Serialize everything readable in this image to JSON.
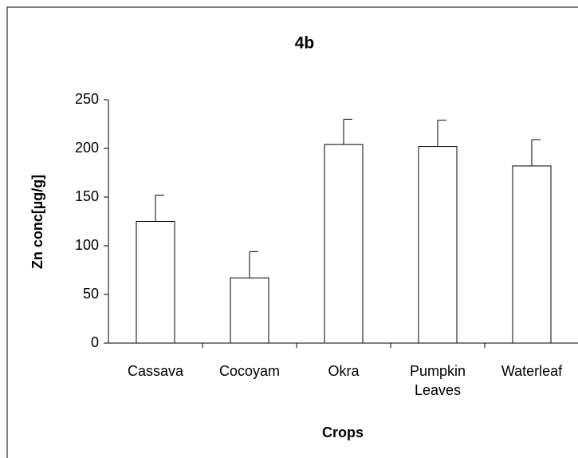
{
  "chart_data": {
    "type": "bar",
    "title": "4b",
    "x_label": "Crops",
    "y_label": "Zn conc[µg/g]",
    "categories": [
      "Cassava",
      "Cocoyam",
      "Okra",
      "Pumpkin Leaves",
      "Waterleaf"
    ],
    "values": [
      125,
      67,
      204,
      202,
      182
    ],
    "errors": [
      27,
      27,
      26,
      27,
      27
    ],
    "color": "#ffffff",
    "ylim": [
      0,
      250
    ],
    "yticks": [
      0,
      50,
      100,
      150,
      200,
      250
    ],
    "grid": false
  }
}
